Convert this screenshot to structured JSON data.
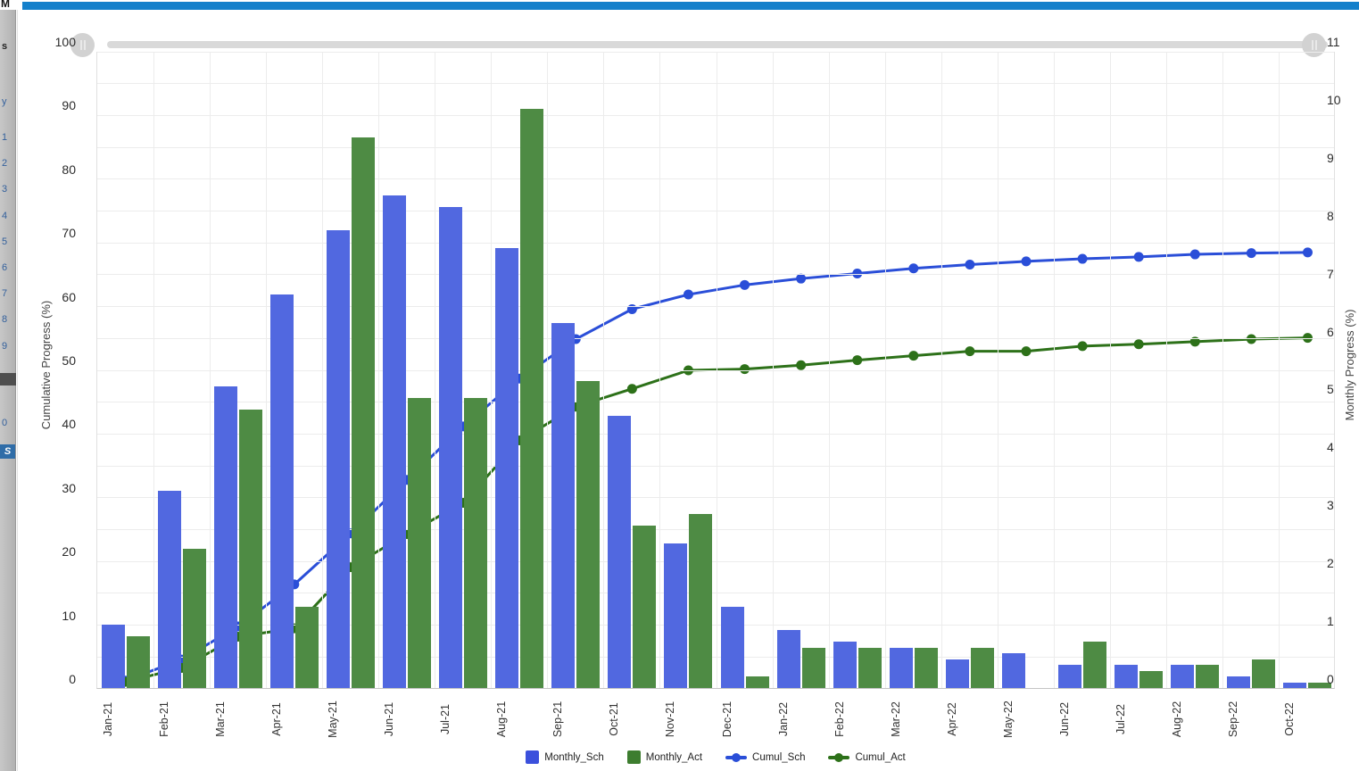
{
  "host": {
    "corner_fragment": "M",
    "left_strip": {
      "fragments": [
        {
          "text": "s",
          "y": 46,
          "style": "dark"
        },
        {
          "text": "y",
          "y": 108,
          "style": "plain"
        }
      ],
      "row_numbers": [
        "1",
        "2",
        "3",
        "4",
        "5",
        "6",
        "7",
        "8",
        "9"
      ],
      "row_numbers_start_y": 148,
      "row_numbers_step": 29.2,
      "extra_fragment": {
        "text": "0",
        "y": 468
      },
      "badge": {
        "text": "S",
        "y": 498
      },
      "dark_block_y": 418
    },
    "top_bar_color": "#1480cb"
  },
  "slider": {
    "left_handle": "range-start-handle",
    "right_handle": "range-end-handle"
  },
  "chart": {
    "left_axis": {
      "title": "Cumulative Progress (%)",
      "min": 0,
      "max": 100,
      "tick_step": 10,
      "ticks": [
        0,
        10,
        20,
        30,
        40,
        50,
        60,
        70,
        80,
        90,
        100
      ]
    },
    "right_axis": {
      "title": "Monthly Progress (%)",
      "min": 0,
      "max": 11,
      "tick_step": 1,
      "ticks": [
        0,
        1,
        2,
        3,
        4,
        5,
        6,
        7,
        8,
        9,
        10,
        11
      ]
    },
    "grid": {
      "h_minor_step": 5,
      "v_every_month": true
    },
    "colors": {
      "bar_sch": "#5168e0",
      "bar_act": "#4e8b44",
      "legend_sch": "#3b50dc",
      "legend_act": "#3d7d2f",
      "line_sch": "#2a4ed8",
      "line_act": "#2d7119"
    }
  },
  "chart_data": {
    "type": "combo bar+line",
    "categories": [
      "Jan-21",
      "Feb-21",
      "Mar-21",
      "Apr-21",
      "May-21",
      "Jun-21",
      "Jul-21",
      "Aug-21",
      "Sep-21",
      "Oct-21",
      "Nov-21",
      "Dec-21",
      "Jan-22",
      "Feb-22",
      "Mar-22",
      "Apr-22",
      "May-22",
      "Jun-22",
      "Jul-22",
      "Aug-22",
      "Sep-22",
      "Oct-22"
    ],
    "series": [
      {
        "name": "Monthly_Sch",
        "type": "bar",
        "axis": "right",
        "values": [
          1.1,
          3.4,
          5.2,
          6.8,
          7.9,
          8.5,
          8.3,
          7.6,
          6.3,
          4.7,
          2.5,
          1.4,
          1.0,
          0.8,
          0.7,
          0.5,
          0.6,
          0.4,
          0.4,
          0.4,
          0.2,
          0.1
        ]
      },
      {
        "name": "Monthly_Act",
        "type": "bar",
        "axis": "right",
        "values": [
          0.9,
          2.4,
          4.8,
          1.4,
          9.5,
          5.0,
          5.0,
          10.0,
          5.3,
          2.8,
          3.0,
          0.2,
          0.7,
          0.7,
          0.7,
          0.7,
          0.0,
          0.8,
          0.3,
          0.4,
          0.5,
          0.1
        ]
      },
      {
        "name": "Cumul_Sch",
        "type": "line",
        "axis": "left",
        "values": [
          1.3,
          4.6,
          9.8,
          16.4,
          24.4,
          32.8,
          41.2,
          48.7,
          54.9,
          59.6,
          61.9,
          63.4,
          64.4,
          65.2,
          66.0,
          66.6,
          67.1,
          67.5,
          67.8,
          68.2,
          68.4,
          68.5
        ]
      },
      {
        "name": "Cumul_Act",
        "type": "line",
        "axis": "left",
        "values": [
          1.1,
          3.3,
          8.2,
          9.5,
          19.1,
          24.3,
          29.2,
          39.0,
          44.3,
          47.1,
          50.0,
          50.2,
          50.8,
          51.6,
          52.3,
          53.0,
          53.0,
          53.8,
          54.1,
          54.5,
          54.9,
          55.1
        ]
      }
    ],
    "title": "",
    "xlabel": "",
    "ylabel_left": "Cumulative Progress (%)",
    "ylabel_right": "Monthly Progress (%)",
    "ylim_left": [
      0,
      100
    ],
    "ylim_right": [
      0,
      11
    ],
    "legend_position": "bottom-center",
    "grid": "on"
  }
}
